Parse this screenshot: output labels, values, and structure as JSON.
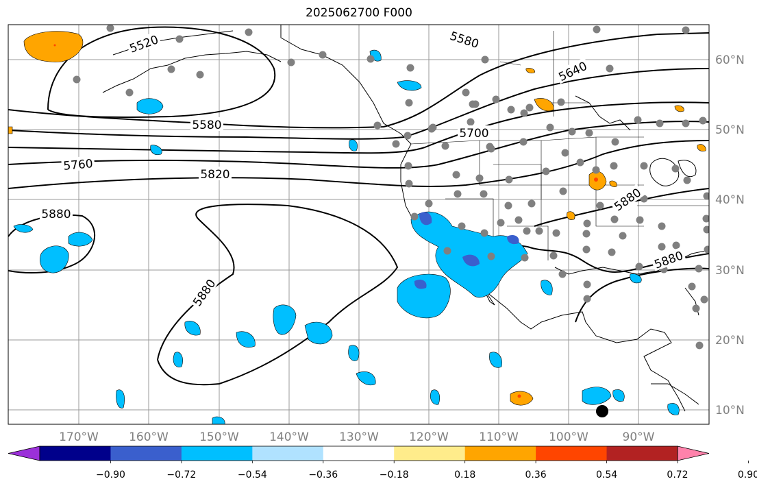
{
  "title": "2025062700 F000",
  "map": {
    "lon_ticks": [
      "170°W",
      "160°W",
      "150°W",
      "140°W",
      "130°W",
      "120°W",
      "110°W",
      "100°W",
      "90°W"
    ],
    "lat_ticks": [
      "60°N",
      "50°N",
      "40°N",
      "30°N",
      "20°N",
      "10°N"
    ],
    "contour_labels": [
      "5520",
      "5580",
      "5580",
      "5640",
      "5700",
      "5760",
      "5820",
      "5880",
      "5880",
      "5880",
      "5880"
    ]
  },
  "colorbar": {
    "ticks": [
      "−0.90",
      "−0.72",
      "−0.54",
      "−0.36",
      "−0.18",
      "0.18",
      "0.36",
      "0.54",
      "0.72",
      "0.90"
    ],
    "colors": [
      "#9b30d9",
      "#00008b",
      "#3a5fcd",
      "#00bfff",
      "#b0e2ff",
      "#ffffff",
      "#ffec8b",
      "#ffa500",
      "#ff4500",
      "#b22222",
      "#ff82ab"
    ]
  },
  "colors": {
    "stations": "#808080",
    "land_outline": "#000000",
    "grid": "#999999",
    "negative_fill": "#00bfff",
    "positive_fill": "#ffa500"
  }
}
